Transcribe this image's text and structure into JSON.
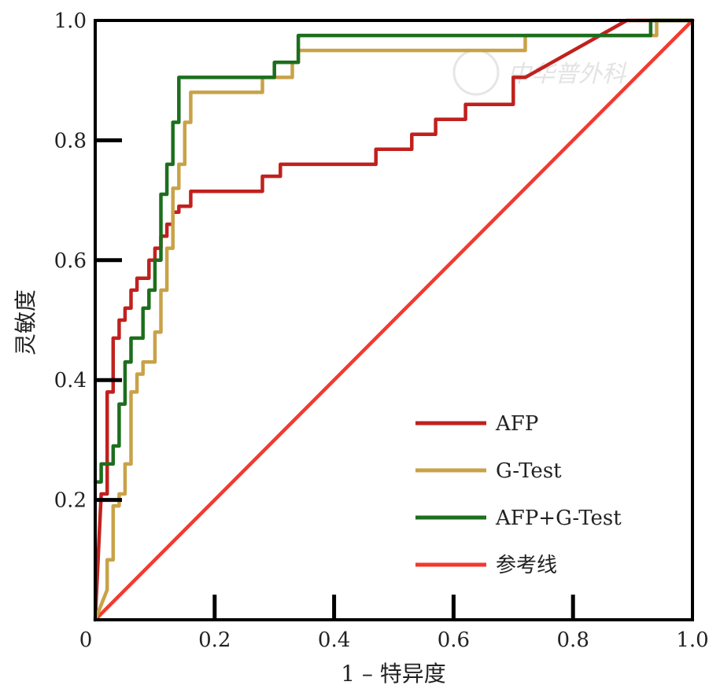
{
  "watermark": "中华普外科",
  "chart_data": {
    "type": "line",
    "xlabel": "1 – 特异度",
    "ylabel": "灵敏度",
    "xlim": [
      0,
      1
    ],
    "ylim": [
      0,
      1
    ],
    "x_ticks": [
      "0",
      "0.2",
      "0.4",
      "0.6",
      "0.8",
      "1.0"
    ],
    "y_ticks": [
      "0.2",
      "0.4",
      "0.6",
      "0.8",
      "1.0"
    ],
    "x_tick_values": [
      0,
      0.2,
      0.4,
      0.6,
      0.8,
      1.0
    ],
    "y_tick_values": [
      0.2,
      0.4,
      0.6,
      0.8,
      1.0
    ],
    "grid": false,
    "legend_position": "bottom-right",
    "series": [
      {
        "name": "AFP",
        "color": "#c0211e",
        "points": [
          [
            0,
            0
          ],
          [
            0.01,
            0.21
          ],
          [
            0.02,
            0.21
          ],
          [
            0.02,
            0.38
          ],
          [
            0.03,
            0.38
          ],
          [
            0.03,
            0.47
          ],
          [
            0.04,
            0.47
          ],
          [
            0.04,
            0.5
          ],
          [
            0.05,
            0.5
          ],
          [
            0.05,
            0.52
          ],
          [
            0.06,
            0.52
          ],
          [
            0.06,
            0.55
          ],
          [
            0.07,
            0.55
          ],
          [
            0.07,
            0.57
          ],
          [
            0.09,
            0.57
          ],
          [
            0.09,
            0.6
          ],
          [
            0.1,
            0.6
          ],
          [
            0.1,
            0.62
          ],
          [
            0.11,
            0.62
          ],
          [
            0.11,
            0.64
          ],
          [
            0.12,
            0.64
          ],
          [
            0.12,
            0.66
          ],
          [
            0.13,
            0.66
          ],
          [
            0.13,
            0.68
          ],
          [
            0.14,
            0.68
          ],
          [
            0.14,
            0.69
          ],
          [
            0.16,
            0.69
          ],
          [
            0.16,
            0.715
          ],
          [
            0.28,
            0.715
          ],
          [
            0.28,
            0.74
          ],
          [
            0.31,
            0.74
          ],
          [
            0.31,
            0.76
          ],
          [
            0.47,
            0.76
          ],
          [
            0.47,
            0.785
          ],
          [
            0.53,
            0.785
          ],
          [
            0.53,
            0.81
          ],
          [
            0.57,
            0.81
          ],
          [
            0.57,
            0.835
          ],
          [
            0.62,
            0.835
          ],
          [
            0.62,
            0.86
          ],
          [
            0.7,
            0.86
          ],
          [
            0.7,
            0.905
          ],
          [
            0.72,
            0.905
          ],
          [
            0.89,
            1.0
          ],
          [
            1.0,
            1.0
          ]
        ]
      },
      {
        "name": "G-Test",
        "color": "#c9a248",
        "points": [
          [
            0,
            0
          ],
          [
            0.02,
            0.05
          ],
          [
            0.02,
            0.1
          ],
          [
            0.03,
            0.1
          ],
          [
            0.03,
            0.19
          ],
          [
            0.04,
            0.19
          ],
          [
            0.04,
            0.21
          ],
          [
            0.05,
            0.21
          ],
          [
            0.05,
            0.26
          ],
          [
            0.06,
            0.26
          ],
          [
            0.06,
            0.38
          ],
          [
            0.07,
            0.38
          ],
          [
            0.07,
            0.41
          ],
          [
            0.08,
            0.41
          ],
          [
            0.08,
            0.43
          ],
          [
            0.1,
            0.43
          ],
          [
            0.1,
            0.48
          ],
          [
            0.11,
            0.48
          ],
          [
            0.11,
            0.55
          ],
          [
            0.12,
            0.55
          ],
          [
            0.12,
            0.62
          ],
          [
            0.13,
            0.62
          ],
          [
            0.13,
            0.72
          ],
          [
            0.14,
            0.72
          ],
          [
            0.14,
            0.76
          ],
          [
            0.15,
            0.76
          ],
          [
            0.15,
            0.83
          ],
          [
            0.16,
            0.83
          ],
          [
            0.16,
            0.88
          ],
          [
            0.28,
            0.88
          ],
          [
            0.28,
            0.905
          ],
          [
            0.33,
            0.905
          ],
          [
            0.33,
            0.93
          ],
          [
            0.34,
            0.93
          ],
          [
            0.34,
            0.95
          ],
          [
            0.72,
            0.95
          ],
          [
            0.72,
            0.975
          ],
          [
            0.94,
            0.975
          ],
          [
            0.94,
            1.0
          ],
          [
            1.0,
            1.0
          ]
        ]
      },
      {
        "name": "AFP+G-Test",
        "color": "#1d6e1d",
        "points": [
          [
            0,
            0.23
          ],
          [
            0.01,
            0.23
          ],
          [
            0.01,
            0.26
          ],
          [
            0.03,
            0.26
          ],
          [
            0.03,
            0.29
          ],
          [
            0.04,
            0.29
          ],
          [
            0.04,
            0.36
          ],
          [
            0.05,
            0.36
          ],
          [
            0.05,
            0.43
          ],
          [
            0.06,
            0.43
          ],
          [
            0.06,
            0.47
          ],
          [
            0.08,
            0.47
          ],
          [
            0.08,
            0.52
          ],
          [
            0.09,
            0.52
          ],
          [
            0.09,
            0.55
          ],
          [
            0.1,
            0.55
          ],
          [
            0.1,
            0.6
          ],
          [
            0.11,
            0.6
          ],
          [
            0.11,
            0.71
          ],
          [
            0.12,
            0.71
          ],
          [
            0.12,
            0.76
          ],
          [
            0.13,
            0.76
          ],
          [
            0.13,
            0.83
          ],
          [
            0.14,
            0.83
          ],
          [
            0.14,
            0.905
          ],
          [
            0.3,
            0.905
          ],
          [
            0.3,
            0.93
          ],
          [
            0.34,
            0.93
          ],
          [
            0.34,
            0.975
          ],
          [
            0.72,
            0.975
          ],
          [
            0.72,
            0.975
          ],
          [
            0.93,
            0.975
          ],
          [
            0.93,
            1.0
          ],
          [
            1.0,
            1.0
          ]
        ]
      },
      {
        "name": "参考线",
        "color": "#f23a2f",
        "points": [
          [
            0,
            0
          ],
          [
            1,
            1
          ]
        ]
      }
    ]
  }
}
